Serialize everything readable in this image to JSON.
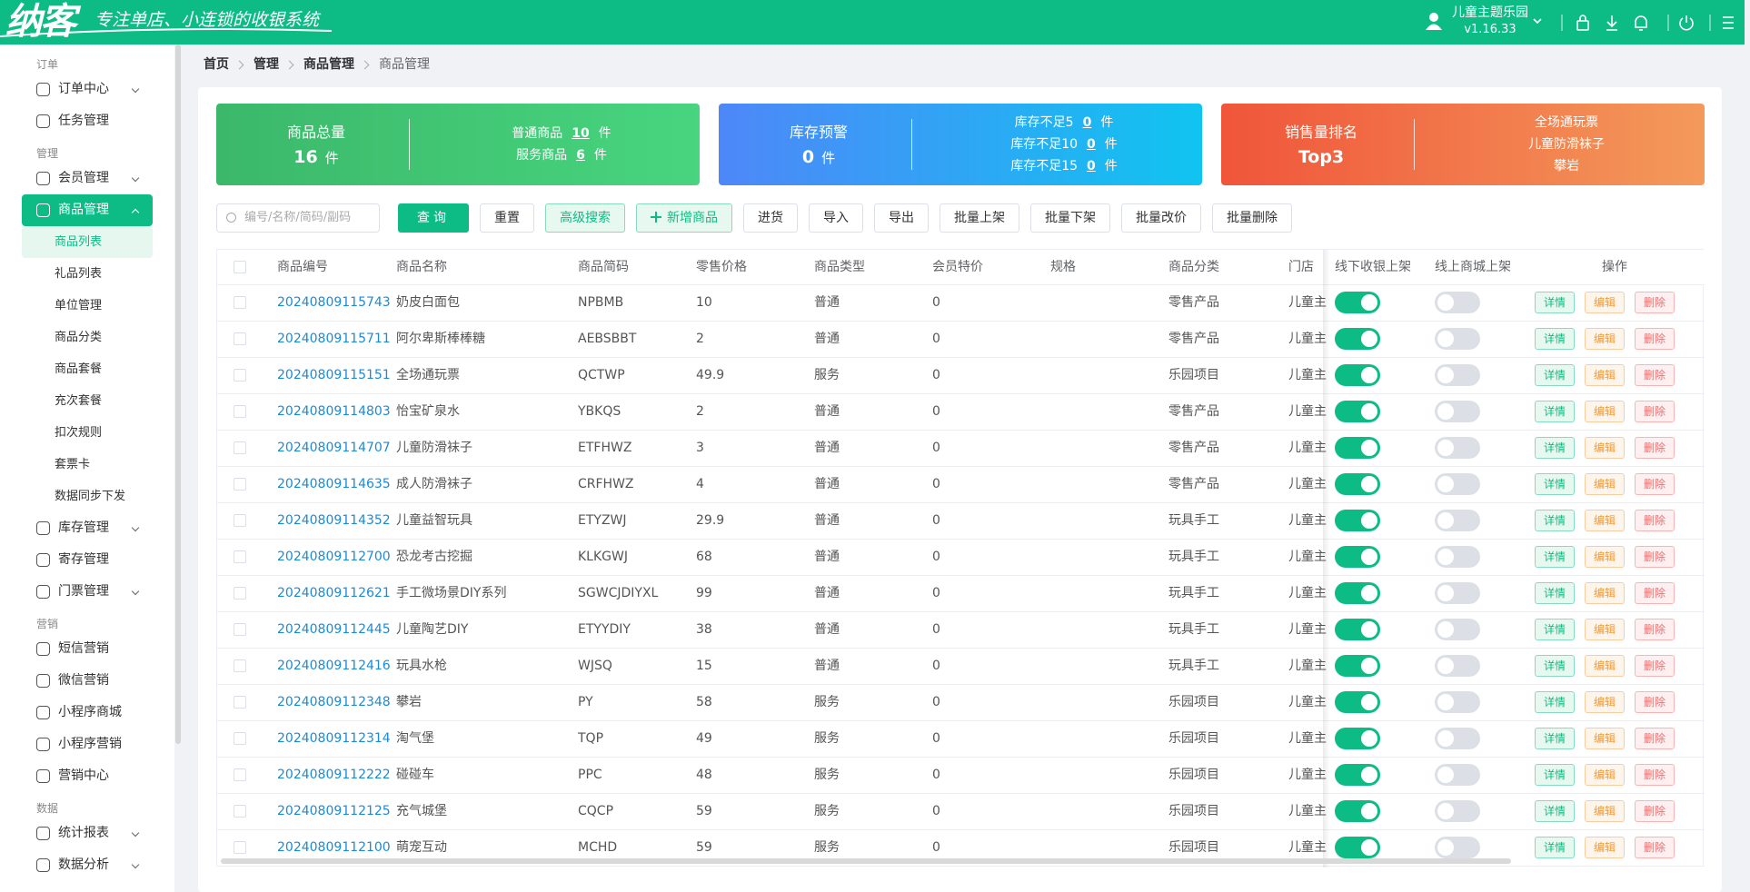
{
  "header": {
    "logo": "纳客",
    "slogan": "专注单店、小连锁的收银系统",
    "store": "儿童主题乐园",
    "version": "v1.16.33"
  },
  "sidebar": {
    "groups": [
      {
        "title": "订单",
        "items": [
          {
            "label": "订单中心",
            "expandable": true
          },
          {
            "label": "任务管理"
          }
        ]
      },
      {
        "title": "管理",
        "items": [
          {
            "label": "会员管理",
            "expandable": true
          },
          {
            "label": "商品管理",
            "expandable": true,
            "active": true,
            "children": [
              {
                "label": "商品列表",
                "active": true
              },
              {
                "label": "礼品列表"
              },
              {
                "label": "单位管理"
              },
              {
                "label": "商品分类"
              },
              {
                "label": "商品套餐"
              },
              {
                "label": "充次套餐"
              },
              {
                "label": "扣次规则"
              },
              {
                "label": "套票卡"
              },
              {
                "label": "数据同步下发"
              }
            ]
          },
          {
            "label": "库存管理",
            "expandable": true
          },
          {
            "label": "寄存管理"
          },
          {
            "label": "门票管理",
            "expandable": true
          }
        ]
      },
      {
        "title": "营销",
        "items": [
          {
            "label": "短信营销"
          },
          {
            "label": "微信营销"
          },
          {
            "label": "小程序商城"
          },
          {
            "label": "小程序营销"
          },
          {
            "label": "营销中心"
          }
        ]
      },
      {
        "title": "数据",
        "items": [
          {
            "label": "统计报表",
            "expandable": true
          },
          {
            "label": "数据分析",
            "expandable": true
          }
        ]
      }
    ]
  },
  "breadcrumb": [
    "首页",
    "管理",
    "商品管理",
    "商品管理"
  ],
  "cards": [
    {
      "title": "商品总量",
      "value": 16,
      "unit": "件",
      "details": [
        {
          "label": "普通商品",
          "value": 10,
          "unit": "件"
        },
        {
          "label": "服务商品",
          "value": 6,
          "unit": "件"
        }
      ]
    },
    {
      "title": "库存预警",
      "value": 0,
      "unit": "件",
      "details": [
        {
          "label": "库存不足5",
          "value": 0,
          "unit": "件"
        },
        {
          "label": "库存不足10",
          "value": 0,
          "unit": "件"
        },
        {
          "label": "库存不足15",
          "value": 0,
          "unit": "件"
        }
      ]
    },
    {
      "title": "销售量排名",
      "value": "Top3",
      "list": [
        "全场通玩票",
        "儿童防滑袜子",
        "攀岩"
      ]
    }
  ],
  "toolbar": {
    "search_placeholder": "编号/名称/简码/副码",
    "buttons": [
      {
        "label": "查询",
        "style": "primary"
      },
      {
        "label": "重置"
      },
      {
        "label": "高级搜索",
        "style": "plain"
      },
      {
        "label": "新增商品",
        "style": "plain",
        "icon": "plus"
      },
      {
        "label": "进货"
      },
      {
        "label": "导入"
      },
      {
        "label": "导出"
      },
      {
        "label": "批量上架"
      },
      {
        "label": "批量下架"
      },
      {
        "label": "批量改价"
      },
      {
        "label": "批量删除"
      }
    ]
  },
  "table": {
    "columns": [
      "商品编号",
      "商品名称",
      "商品简码",
      "零售价格",
      "商品类型",
      "会员特价",
      "规格",
      "商品分类",
      "门店",
      "线下收银上架",
      "线上商城上架",
      "操作"
    ],
    "actions": [
      "详情",
      "编辑",
      "删除"
    ],
    "rows": [
      {
        "code": "20240809115743",
        "name": "奶皮白面包",
        "abbr": "NPBMB",
        "price": 10,
        "type": "普通",
        "member_price": 0,
        "category": "零售产品",
        "store": "儿童主",
        "offline": true,
        "online": false
      },
      {
        "code": "20240809115711",
        "name": "阿尔卑斯棒棒糖",
        "abbr": "AEBSBBT",
        "price": 2,
        "type": "普通",
        "member_price": 0,
        "category": "零售产品",
        "store": "儿童主",
        "offline": true,
        "online": false
      },
      {
        "code": "20240809115151",
        "name": "全场通玩票",
        "abbr": "QCTWP",
        "price": 49.9,
        "type": "服务",
        "member_price": 0,
        "category": "乐园项目",
        "store": "儿童主",
        "offline": true,
        "online": false
      },
      {
        "code": "20240809114803",
        "name": "怡宝矿泉水",
        "abbr": "YBKQS",
        "price": 2,
        "type": "普通",
        "member_price": 0,
        "category": "零售产品",
        "store": "儿童主",
        "offline": true,
        "online": false
      },
      {
        "code": "20240809114707",
        "name": "儿童防滑袜子",
        "abbr": "ETFHWZ",
        "price": 3,
        "type": "普通",
        "member_price": 0,
        "category": "零售产品",
        "store": "儿童主",
        "offline": true,
        "online": false
      },
      {
        "code": "20240809114635",
        "name": "成人防滑袜子",
        "abbr": "CRFHWZ",
        "price": 4,
        "type": "普通",
        "member_price": 0,
        "category": "零售产品",
        "store": "儿童主",
        "offline": true,
        "online": false
      },
      {
        "code": "20240809114352",
        "name": "儿童益智玩具",
        "abbr": "ETYZWJ",
        "price": 29.9,
        "type": "普通",
        "member_price": 0,
        "category": "玩具手工",
        "store": "儿童主",
        "offline": true,
        "online": false
      },
      {
        "code": "20240809112700",
        "name": "恐龙考古挖掘",
        "abbr": "KLKGWJ",
        "price": 68,
        "type": "普通",
        "member_price": 0,
        "category": "玩具手工",
        "store": "儿童主",
        "offline": true,
        "online": false
      },
      {
        "code": "20240809112621",
        "name": "手工微场景DIY系列",
        "abbr": "SGWCJDIYXL",
        "price": 99,
        "type": "普通",
        "member_price": 0,
        "category": "玩具手工",
        "store": "儿童主",
        "offline": true,
        "online": false
      },
      {
        "code": "20240809112445",
        "name": "儿童陶艺DIY",
        "abbr": "ETYYDIY",
        "price": 38,
        "type": "普通",
        "member_price": 0,
        "category": "玩具手工",
        "store": "儿童主",
        "offline": true,
        "online": false
      },
      {
        "code": "20240809112416",
        "name": "玩具水枪",
        "abbr": "WJSQ",
        "price": 15,
        "type": "普通",
        "member_price": 0,
        "category": "玩具手工",
        "store": "儿童主",
        "offline": true,
        "online": false
      },
      {
        "code": "20240809112348",
        "name": "攀岩",
        "abbr": "PY",
        "price": 58,
        "type": "服务",
        "member_price": 0,
        "category": "乐园项目",
        "store": "儿童主",
        "offline": true,
        "online": false
      },
      {
        "code": "20240809112314",
        "name": "淘气堡",
        "abbr": "TQP",
        "price": 49,
        "type": "服务",
        "member_price": 0,
        "category": "乐园项目",
        "store": "儿童主",
        "offline": true,
        "online": false
      },
      {
        "code": "20240809112222",
        "name": "碰碰车",
        "abbr": "PPC",
        "price": 48,
        "type": "服务",
        "member_price": 0,
        "category": "乐园项目",
        "store": "儿童主",
        "offline": true,
        "online": false
      },
      {
        "code": "20240809112125",
        "name": "充气城堡",
        "abbr": "CQCP",
        "price": 59,
        "type": "服务",
        "member_price": 0,
        "category": "乐园项目",
        "store": "儿童主",
        "offline": true,
        "online": false
      },
      {
        "code": "20240809112100",
        "name": "萌宠互动",
        "abbr": "MCHD",
        "price": 59,
        "type": "服务",
        "member_price": 0,
        "category": "乐园项目",
        "store": "儿童主",
        "offline": true,
        "online": false
      }
    ]
  }
}
